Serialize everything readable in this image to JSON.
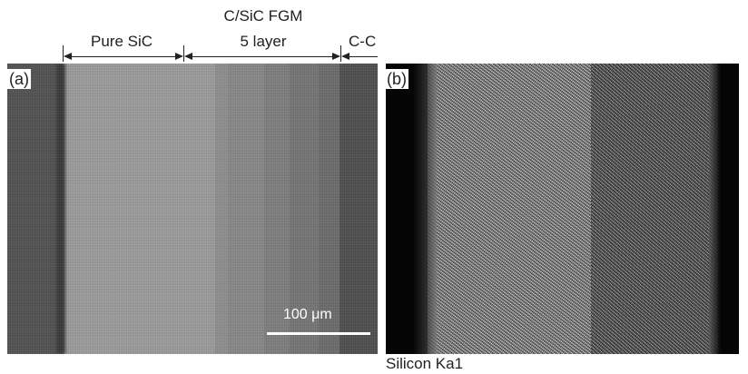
{
  "annotations": {
    "pure_sic": "Pure SiC",
    "fgm_line1": "C/SiC FGM",
    "fgm_line2": "5 layer",
    "cc": "C-C"
  },
  "panel_a": {
    "label": "(a)",
    "scale_bar_text": "100 μm"
  },
  "panel_b": {
    "label": "(b)",
    "caption": "Silicon Ka1"
  }
}
